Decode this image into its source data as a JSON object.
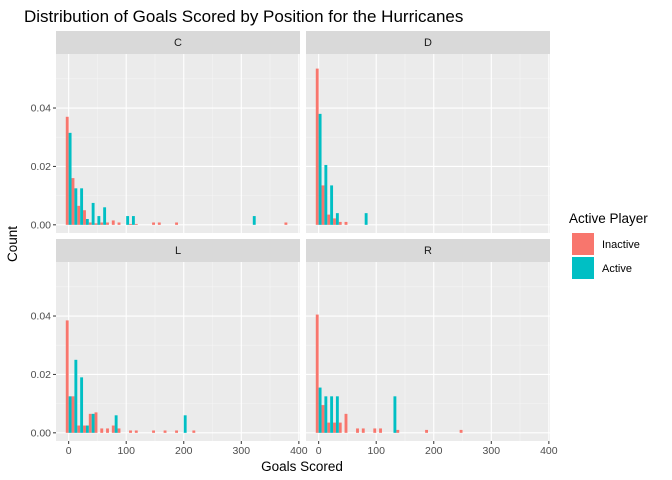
{
  "chart_data": {
    "type": "bar",
    "title": "Distribution of Goals Scored by Position for the Hurricanes",
    "xlabel": "Goals Scored",
    "ylabel": "Count",
    "xlim": [
      -22,
      402
    ],
    "ylim": [
      -0.0028,
      0.0585
    ],
    "x_ticks": [
      0,
      100,
      200,
      300,
      400
    ],
    "y_ticks": [
      0.0,
      0.02,
      0.04
    ],
    "y_tick_labels": [
      "0.00",
      "0.02",
      "0.04"
    ],
    "bin_width": 10,
    "grid": true,
    "legend": {
      "title": "Active Player",
      "position": "right",
      "entries": [
        {
          "name": "Inactive",
          "color": "#F8766D"
        },
        {
          "name": "Active",
          "color": "#00BFC4"
        }
      ]
    },
    "facets": [
      {
        "label": "C",
        "series": [
          {
            "name": "Inactive",
            "color": "#F8766D",
            "points": [
              [
                0,
                0.037
              ],
              [
                10,
                0.016
              ],
              [
                20,
                0.0065
              ],
              [
                30,
                0.005
              ],
              [
                40,
                0.0008
              ],
              [
                50,
                0.0005
              ],
              [
                60,
                0.0008
              ],
              [
                70,
                0.0008
              ],
              [
                80,
                0.0015
              ],
              [
                90,
                0.0008
              ],
              [
                110,
                0.0003
              ],
              [
                120,
                0.0003
              ],
              [
                150,
                0.0008
              ],
              [
                160,
                0.0008
              ],
              [
                190,
                0.0008
              ],
              [
                380,
                0.0008
              ]
            ]
          },
          {
            "name": "Active",
            "color": "#00BFC4",
            "points": [
              [
                0,
                0.0315
              ],
              [
                10,
                0.0125
              ],
              [
                20,
                0.0125
              ],
              [
                30,
                0.002
              ],
              [
                40,
                0.0075
              ],
              [
                50,
                0.003
              ],
              [
                60,
                0.006
              ],
              [
                100,
                0.003
              ],
              [
                110,
                0.003
              ],
              [
                320,
                0.003
              ]
            ]
          }
        ]
      },
      {
        "label": "D",
        "series": [
          {
            "name": "Inactive",
            "color": "#F8766D",
            "points": [
              [
                0,
                0.0535
              ],
              [
                10,
                0.0135
              ],
              [
                20,
                0.0035
              ],
              [
                30,
                0.0022
              ],
              [
                40,
                0.001
              ],
              [
                50,
                0.001
              ]
            ]
          },
          {
            "name": "Active",
            "color": "#00BFC4",
            "points": [
              [
                0,
                0.038
              ],
              [
                10,
                0.0205
              ],
              [
                20,
                0.0135
              ],
              [
                30,
                0.004
              ],
              [
                80,
                0.004
              ]
            ]
          }
        ]
      },
      {
        "label": "L",
        "series": [
          {
            "name": "Inactive",
            "color": "#F8766D",
            "points": [
              [
                0,
                0.0385
              ],
              [
                10,
                0.0125
              ],
              [
                20,
                0.0025
              ],
              [
                30,
                0.0025
              ],
              [
                40,
                0.0065
              ],
              [
                50,
                0.007
              ],
              [
                60,
                0.0015
              ],
              [
                70,
                0.0015
              ],
              [
                80,
                0.0025
              ],
              [
                90,
                0.0015
              ],
              [
                110,
                0.0008
              ],
              [
                120,
                0.0008
              ],
              [
                150,
                0.0008
              ],
              [
                170,
                0.0008
              ],
              [
                190,
                0.0008
              ],
              [
                220,
                0.0008
              ]
            ]
          },
          {
            "name": "Active",
            "color": "#00BFC4",
            "points": [
              [
                0,
                0.0125
              ],
              [
                10,
                0.025
              ],
              [
                20,
                0.019
              ],
              [
                30,
                0.0025
              ],
              [
                40,
                0.0065
              ],
              [
                80,
                0.006
              ],
              [
                200,
                0.006
              ]
            ]
          }
        ]
      },
      {
        "label": "R",
        "series": [
          {
            "name": "Inactive",
            "color": "#F8766D",
            "points": [
              [
                0,
                0.0405
              ],
              [
                10,
                0.0095
              ],
              [
                20,
                0.0035
              ],
              [
                30,
                0.0035
              ],
              [
                40,
                0.0035
              ],
              [
                50,
                0.0065
              ],
              [
                70,
                0.0015
              ],
              [
                80,
                0.0015
              ],
              [
                100,
                0.0015
              ],
              [
                110,
                0.0015
              ],
              [
                140,
                0.001
              ],
              [
                190,
                0.001
              ],
              [
                250,
                0.001
              ]
            ]
          },
          {
            "name": "Active",
            "color": "#00BFC4",
            "points": [
              [
                0,
                0.0155
              ],
              [
                10,
                0.0125
              ],
              [
                20,
                0.0125
              ],
              [
                30,
                0.0125
              ],
              [
                130,
                0.0125
              ]
            ]
          }
        ]
      }
    ]
  }
}
